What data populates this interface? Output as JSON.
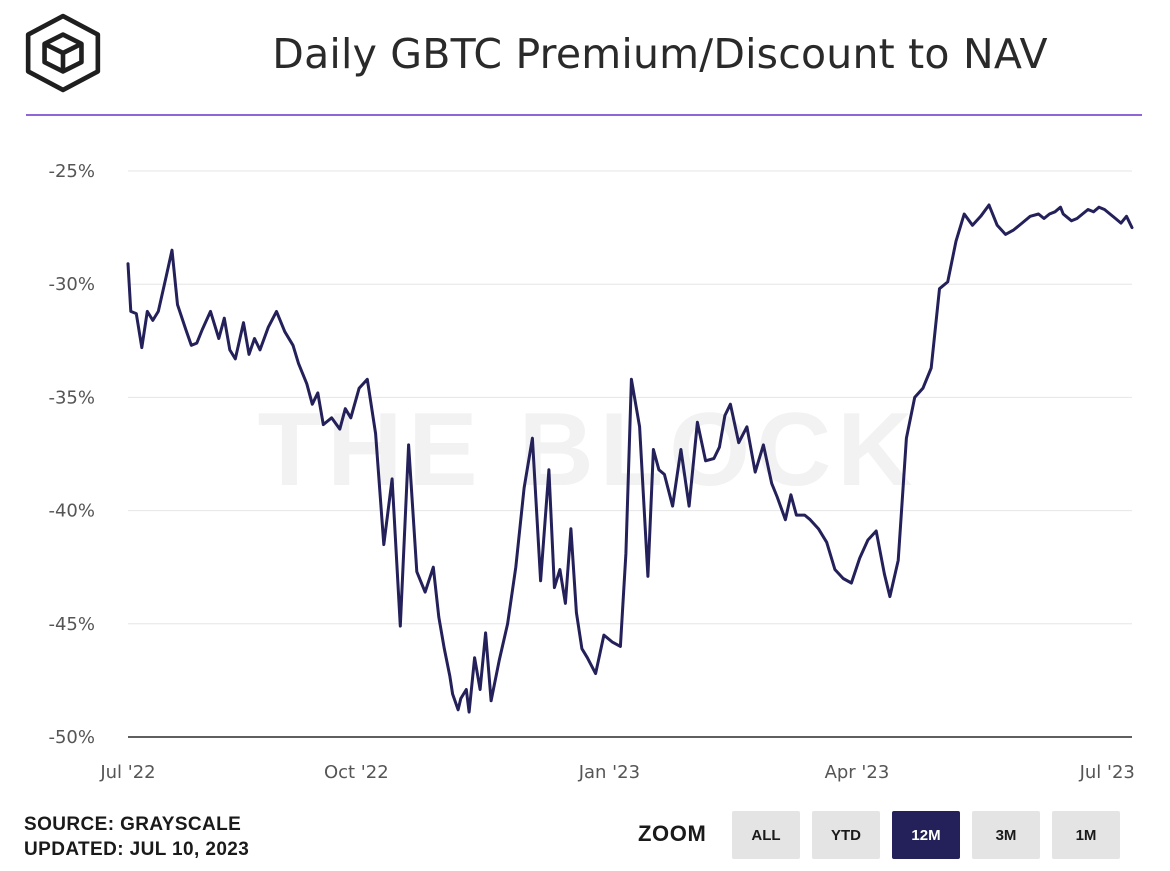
{
  "header": {
    "title": "Daily GBTC Premium/Discount to NAV",
    "logo_icon": "the-block-cube-logo"
  },
  "footer": {
    "source": "SOURCE: GRAYSCALE",
    "updated": "UPDATED: JUL 10, 2023",
    "zoom_label": "ZOOM",
    "zoom_options": [
      "ALL",
      "YTD",
      "12M",
      "3M",
      "1M"
    ],
    "zoom_selected": "12M"
  },
  "colors": {
    "line": "#23205a",
    "accent_rule": "#8f66d9",
    "active_button": "#23205a",
    "inactive_button": "#e4e4e4"
  },
  "chart_data": {
    "type": "line",
    "title": "Daily GBTC Premium/Discount to NAV",
    "xlabel": "",
    "ylabel": "",
    "ylim": [
      -50,
      -25
    ],
    "xlim": [
      "2022-07-10",
      "2023-07-10"
    ],
    "y_ticks": [
      "-25%",
      "-30%",
      "-35%",
      "-40%",
      "-45%",
      "-50%"
    ],
    "y_tick_values": [
      -25,
      -30,
      -35,
      -40,
      -45,
      -50
    ],
    "x_ticks": [
      "Jul '22",
      "Oct '22",
      "Jan '23",
      "Apr '23",
      "Jul '23"
    ],
    "x_tick_dates": [
      "2022-07-01",
      "2022-10-01",
      "2023-01-01",
      "2023-04-01",
      "2023-07-01"
    ],
    "grid": true,
    "legend": "none",
    "watermark": "THE BLOCK",
    "series": [
      {
        "x": [
          "2022-07-10",
          "2022-07-11",
          "2022-07-13",
          "2022-07-15",
          "2022-07-17",
          "2022-07-19",
          "2022-07-21",
          "2022-07-24",
          "2022-07-26",
          "2022-07-28",
          "2022-07-31",
          "2022-08-02",
          "2022-08-04",
          "2022-08-06",
          "2022-08-09",
          "2022-08-12",
          "2022-08-14",
          "2022-08-16",
          "2022-08-18",
          "2022-08-21",
          "2022-08-23",
          "2022-08-25",
          "2022-08-27",
          "2022-08-30",
          "2022-09-02",
          "2022-09-05",
          "2022-09-08",
          "2022-09-10",
          "2022-09-13",
          "2022-09-15",
          "2022-09-17",
          "2022-09-19",
          "2022-09-22",
          "2022-09-25",
          "2022-09-27",
          "2022-09-29",
          "2022-10-02",
          "2022-10-05",
          "2022-10-08",
          "2022-10-11",
          "2022-10-14",
          "2022-10-17",
          "2022-10-20",
          "2022-10-23",
          "2022-10-26",
          "2022-10-29",
          "2022-10-31",
          "2022-11-02",
          "2022-11-04",
          "2022-11-05",
          "2022-11-07",
          "2022-11-08",
          "2022-11-10",
          "2022-11-11",
          "2022-11-13",
          "2022-11-15",
          "2022-11-17",
          "2022-11-19",
          "2022-11-22",
          "2022-11-25",
          "2022-11-28",
          "2022-12-01",
          "2022-12-04",
          "2022-12-07",
          "2022-12-10",
          "2022-12-12",
          "2022-12-14",
          "2022-12-16",
          "2022-12-18",
          "2022-12-20",
          "2022-12-22",
          "2022-12-24",
          "2022-12-27",
          "2022-12-30",
          "2023-01-02",
          "2023-01-05",
          "2023-01-07",
          "2023-01-09",
          "2023-01-12",
          "2023-01-15",
          "2023-01-17",
          "2023-01-19",
          "2023-01-21",
          "2023-01-24",
          "2023-01-27",
          "2023-01-30",
          "2023-02-02",
          "2023-02-05",
          "2023-02-08",
          "2023-02-10",
          "2023-02-12",
          "2023-02-14",
          "2023-02-17",
          "2023-02-20",
          "2023-02-23",
          "2023-02-26",
          "2023-03-01",
          "2023-03-03",
          "2023-03-06",
          "2023-03-08",
          "2023-03-10",
          "2023-03-13",
          "2023-03-15",
          "2023-03-18",
          "2023-03-21",
          "2023-03-24",
          "2023-03-27",
          "2023-03-30",
          "2023-04-02",
          "2023-04-05",
          "2023-04-08",
          "2023-04-11",
          "2023-04-13",
          "2023-04-16",
          "2023-04-19",
          "2023-04-22",
          "2023-04-25",
          "2023-04-28",
          "2023-05-01",
          "2023-05-04",
          "2023-05-07",
          "2023-05-10",
          "2023-05-13",
          "2023-05-16",
          "2023-05-19",
          "2023-05-22",
          "2023-05-25",
          "2023-05-28",
          "2023-05-31",
          "2023-06-03",
          "2023-06-06",
          "2023-06-08",
          "2023-06-10",
          "2023-06-12",
          "2023-06-14",
          "2023-06-15",
          "2023-06-16",
          "2023-06-18",
          "2023-06-20",
          "2023-06-22",
          "2023-06-24",
          "2023-06-26",
          "2023-06-28",
          "2023-06-30",
          "2023-07-02",
          "2023-07-04",
          "2023-07-06",
          "2023-07-08",
          "2023-07-10"
        ],
        "y": [
          -29.1,
          -31.2,
          -31.3,
          -32.8,
          -31.2,
          -31.6,
          -31.2,
          -29.6,
          -28.5,
          -30.9,
          -32.0,
          -32.7,
          -32.6,
          -32.0,
          -31.2,
          -32.4,
          -31.5,
          -32.9,
          -33.3,
          -31.7,
          -33.1,
          -32.4,
          -32.9,
          -31.9,
          -31.2,
          -32.1,
          -32.7,
          -33.5,
          -34.4,
          -35.3,
          -34.8,
          -36.2,
          -35.9,
          -36.4,
          -35.5,
          -35.9,
          -34.6,
          -34.2,
          -36.6,
          -41.5,
          -38.6,
          -45.1,
          -37.1,
          -42.7,
          -43.6,
          -42.5,
          -44.7,
          -46.1,
          -47.3,
          -48.1,
          -48.8,
          -48.3,
          -47.9,
          -48.9,
          -46.5,
          -47.9,
          -45.4,
          -48.4,
          -46.6,
          -45.0,
          -42.5,
          -39.0,
          -36.8,
          -43.1,
          -38.2,
          -43.4,
          -42.6,
          -44.1,
          -40.8,
          -44.5,
          -46.1,
          -46.5,
          -47.2,
          -45.5,
          -45.8,
          -46.0,
          -41.9,
          -34.2,
          -36.3,
          -42.9,
          -37.3,
          -38.2,
          -38.4,
          -39.8,
          -37.3,
          -39.8,
          -36.1,
          -37.8,
          -37.7,
          -37.2,
          -35.8,
          -35.3,
          -37.0,
          -36.3,
          -38.3,
          -37.1,
          -38.8,
          -39.4,
          -40.4,
          -39.3,
          -40.2,
          -40.2,
          -40.4,
          -40.8,
          -41.4,
          -42.6,
          -43.0,
          -43.2,
          -42.1,
          -41.3,
          -40.9,
          -42.8,
          -43.8,
          -42.2,
          -36.8,
          -35.0,
          -34.6,
          -33.7,
          -30.2,
          -29.9,
          -28.1,
          -26.9,
          -27.4,
          -27.0,
          -26.5,
          -27.4,
          -27.8,
          -27.6,
          -27.3,
          -27.0,
          -26.9,
          -27.1,
          -26.9,
          -26.8,
          -26.6,
          -26.9,
          -27.0,
          -27.2,
          -27.1,
          -26.9,
          -26.7,
          -26.8,
          -26.6,
          -26.7,
          -26.9,
          -27.1,
          -27.3,
          -27.0,
          -27.5
        ]
      }
    ]
  }
}
